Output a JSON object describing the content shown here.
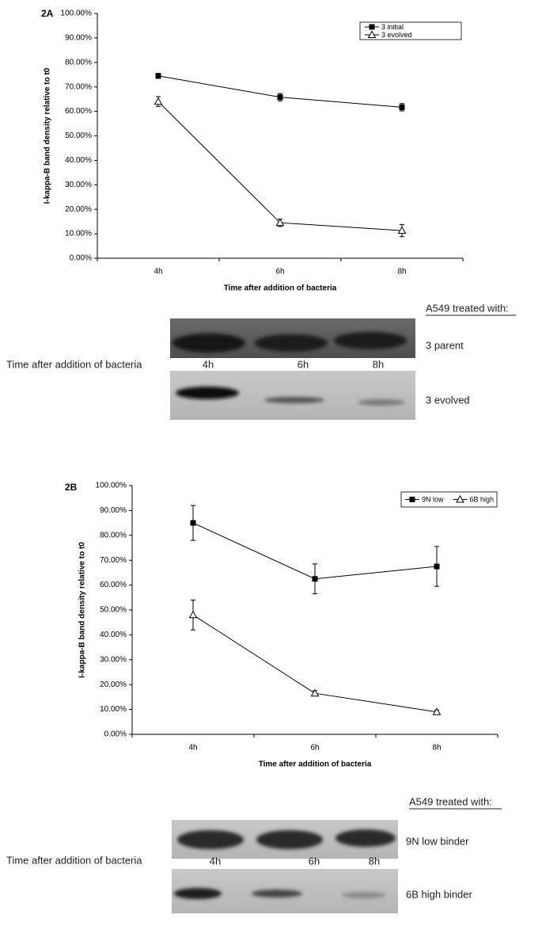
{
  "chart_data": [
    {
      "type": "line",
      "panel_label": "2A",
      "x_label": "Time after addition of bacteria",
      "y_label": "I-kappa-B band density relative to t0",
      "categories": [
        "4h",
        "6h",
        "8h"
      ],
      "series": [
        {
          "name": "3 initial",
          "color": "#000000",
          "marker": "square",
          "values": [
            74.5,
            65.8,
            61.7
          ],
          "errors": [
            1.0,
            1.5,
            1.5
          ]
        },
        {
          "name": "3 evolved",
          "color": "#000000",
          "marker": "triangle",
          "values": [
            64,
            14.5,
            11.3
          ],
          "errors": [
            2.0,
            1.5,
            2.5
          ]
        }
      ],
      "ylim": [
        0,
        100
      ],
      "yticks": [
        {
          "value": 0,
          "label": "0.00%"
        },
        {
          "value": 10,
          "label": "10.00%"
        },
        {
          "value": 20,
          "label": "20.00%"
        },
        {
          "value": 30,
          "label": "30.00%"
        },
        {
          "value": 40,
          "label": "40.00%"
        },
        {
          "value": 50,
          "label": "50.00%"
        },
        {
          "value": 60,
          "label": "60.00%"
        },
        {
          "value": 70,
          "label": "70.00%"
        },
        {
          "value": 80,
          "label": "80.00%"
        },
        {
          "value": 90,
          "label": "90.00%"
        },
        {
          "value": 100,
          "label": "100.00%"
        }
      ],
      "grid": false,
      "legend": "upper right"
    },
    {
      "type": "line",
      "panel_label": "2B",
      "x_label": "Time after addition of bacteria",
      "y_label": "I-kappa-B band density relative to t0",
      "categories": [
        "4h",
        "6h",
        "8h"
      ],
      "series": [
        {
          "name": "9N low",
          "color": "#000000",
          "marker": "square",
          "values": [
            85,
            62.5,
            67.5
          ],
          "errors": [
            7,
            6,
            8
          ]
        },
        {
          "name": "6B high",
          "color": "#000000",
          "marker": "triangle",
          "values": [
            48,
            16.5,
            9
          ],
          "errors": [
            6,
            1,
            0.7
          ]
        }
      ],
      "ylim": [
        0,
        100
      ],
      "yticks": [
        {
          "value": 0,
          "label": "0.00%"
        },
        {
          "value": 10,
          "label": "10.00%"
        },
        {
          "value": 20,
          "label": "20.00%"
        },
        {
          "value": 30,
          "label": "30.00%"
        },
        {
          "value": 40,
          "label": "40.00%"
        },
        {
          "value": 50,
          "label": "50.00%"
        },
        {
          "value": 60,
          "label": "60.00%"
        },
        {
          "value": 70,
          "label": "70.00%"
        },
        {
          "value": 80,
          "label": "80.00%"
        },
        {
          "value": 90,
          "label": "90.00%"
        },
        {
          "value": 100,
          "label": "100.00%"
        }
      ],
      "grid": false,
      "legend": "upper right"
    }
  ],
  "blots": [
    {
      "header": "A549 treated with:",
      "row_label": "Time after addition of bacteria",
      "lanes": [
        "4h",
        "6h",
        "8h"
      ],
      "rows": [
        "3 parent",
        "3 evolved"
      ]
    },
    {
      "header": "A549 treated with:",
      "row_label": "Time after addition of bacteria",
      "lanes": [
        "4h",
        "6h",
        "8h"
      ],
      "rows": [
        "9N low binder",
        "6B high binder"
      ]
    }
  ]
}
